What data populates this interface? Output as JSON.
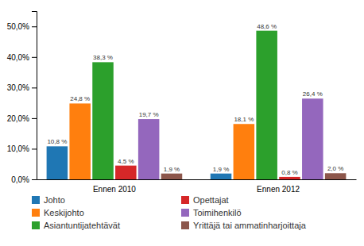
{
  "chart_data": {
    "type": "bar",
    "categories": [
      "Ennen 2010",
      "Ennen 2012"
    ],
    "series": [
      {
        "name": "Johto",
        "values": [
          10.8,
          1.9
        ],
        "value_labels": [
          "10,8 %",
          "1,9 %"
        ]
      },
      {
        "name": "Keskijohto",
        "values": [
          24.8,
          18.1
        ],
        "value_labels": [
          "24,8 %",
          "18,1 %"
        ]
      },
      {
        "name": "Asiantuntijatehtävät",
        "values": [
          38.3,
          48.6
        ],
        "value_labels": [
          "38,3 %",
          "48,6 %"
        ]
      },
      {
        "name": "Opettajat",
        "values": [
          4.5,
          0.8
        ],
        "value_labels": [
          "4,5 %",
          "0,8 %"
        ]
      },
      {
        "name": "Toimihenkilö",
        "values": [
          19.7,
          26.4
        ],
        "value_labels": [
          "19,7 %",
          "26,4 %"
        ]
      },
      {
        "name": "Yrittäjä tai ammatinharjoittaja",
        "values": [
          1.9,
          2.0
        ],
        "value_labels": [
          "1,9 %",
          "2,0 %"
        ]
      }
    ],
    "ylim": [
      0,
      55
    ],
    "yticks": [
      {
        "value": 0,
        "label": "0,0%"
      },
      {
        "value": 10,
        "label": "10,0%"
      },
      {
        "value": 20,
        "label": "20,0%"
      },
      {
        "value": 30,
        "label": "30,0%"
      },
      {
        "value": 40,
        "label": "40,0%"
      },
      {
        "value": 50,
        "label": "50,0%"
      }
    ],
    "grid": false,
    "legend": "bottom",
    "data_labels": true
  }
}
